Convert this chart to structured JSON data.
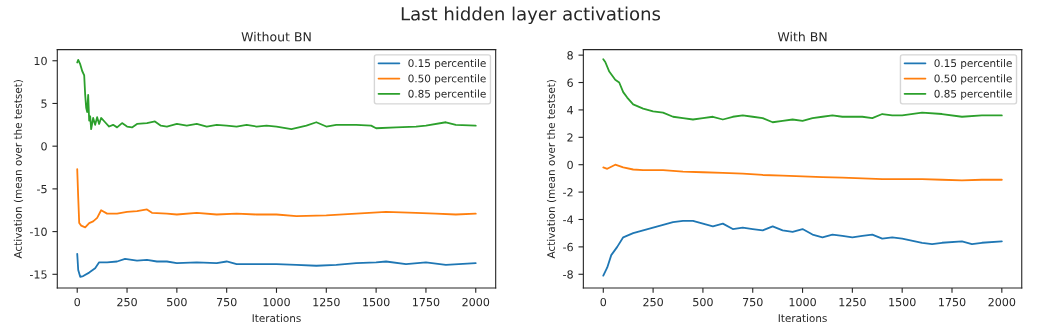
{
  "chart_data": [
    {
      "type": "line",
      "title": "Without BN",
      "xlabel": "Iterations",
      "ylabel": "Activation (mean over the testset)",
      "annotations": [
        "Last hidden layer activations"
      ],
      "xlim": [
        -100,
        2100
      ],
      "ylim": [
        -16.6,
        11.3
      ],
      "xticks": [
        0,
        250,
        500,
        750,
        1000,
        1250,
        1500,
        1750,
        2000
      ],
      "yticks": [
        -15,
        -10,
        -5,
        0,
        5,
        10
      ],
      "grid": false,
      "legend": "top right",
      "series": [
        {
          "name": "0.15 percentile",
          "color": "#1f77b4",
          "x": [
            0,
            5,
            15,
            30,
            60,
            90,
            110,
            150,
            200,
            240,
            300,
            350,
            400,
            450,
            500,
            600,
            700,
            750,
            800,
            900,
            1000,
            1100,
            1200,
            1300,
            1400,
            1500,
            1550,
            1650,
            1750,
            1850,
            2000
          ],
          "values": [
            -12.6,
            -14.5,
            -15.3,
            -15.2,
            -14.8,
            -14.3,
            -13.6,
            -13.6,
            -13.5,
            -13.2,
            -13.4,
            -13.3,
            -13.5,
            -13.5,
            -13.7,
            -13.6,
            -13.7,
            -13.5,
            -13.8,
            -13.8,
            -13.8,
            -13.9,
            -14.0,
            -13.9,
            -13.7,
            -13.6,
            -13.5,
            -13.8,
            -13.6,
            -13.9,
            -13.7
          ]
        },
        {
          "name": "0.50 percentile",
          "color": "#ff7f0e",
          "x": [
            0,
            5,
            10,
            20,
            40,
            60,
            80,
            100,
            120,
            150,
            200,
            250,
            300,
            350,
            375,
            450,
            500,
            600,
            700,
            800,
            900,
            1000,
            1100,
            1250,
            1400,
            1550,
            1700,
            1800,
            1900,
            2000
          ],
          "values": [
            -2.7,
            -6,
            -9,
            -9.3,
            -9.5,
            -9,
            -8.8,
            -8.4,
            -7.5,
            -7.9,
            -7.9,
            -7.7,
            -7.6,
            -7.4,
            -7.8,
            -7.9,
            -8.0,
            -7.8,
            -8.0,
            -7.9,
            -8.0,
            -8.0,
            -8.2,
            -8.1,
            -7.9,
            -7.7,
            -7.8,
            -7.9,
            -8.0,
            -7.9
          ]
        },
        {
          "name": "0.85 percentile",
          "color": "#2ca02c",
          "x": [
            0,
            5,
            15,
            25,
            35,
            40,
            45,
            50,
            55,
            60,
            65,
            70,
            80,
            90,
            100,
            110,
            120,
            140,
            160,
            180,
            200,
            225,
            250,
            275,
            300,
            350,
            390,
            420,
            450,
            500,
            550,
            600,
            650,
            700,
            750,
            800,
            850,
            900,
            950,
            1000,
            1075,
            1150,
            1200,
            1250,
            1300,
            1400,
            1475,
            1500,
            1600,
            1700,
            1750,
            1850,
            1900,
            2000
          ],
          "values": [
            9.8,
            10.1,
            9.6,
            8.8,
            8.3,
            6,
            4.5,
            4,
            6,
            3,
            3.5,
            2.0,
            3.3,
            2.5,
            3.4,
            2.6,
            3.3,
            2.8,
            2.3,
            2.5,
            2.2,
            2.7,
            2.3,
            2.2,
            2.6,
            2.7,
            2.9,
            2.4,
            2.3,
            2.6,
            2.4,
            2.6,
            2.3,
            2.5,
            2.4,
            2.3,
            2.5,
            2.3,
            2.4,
            2.3,
            2.0,
            2.4,
            2.8,
            2.3,
            2.5,
            2.5,
            2.4,
            2.1,
            2.2,
            2.3,
            2.4,
            2.8,
            2.5,
            2.4
          ]
        }
      ]
    },
    {
      "type": "line",
      "title": "With BN",
      "xlabel": "Iterations",
      "ylabel": "Activation (mean over the testset)",
      "xlim": [
        -100,
        2100
      ],
      "ylim": [
        -9,
        8.4
      ],
      "xticks": [
        0,
        250,
        500,
        750,
        1000,
        1250,
        1500,
        1750,
        2000
      ],
      "yticks": [
        -8,
        -6,
        -4,
        -2,
        0,
        2,
        4,
        6,
        8
      ],
      "grid": false,
      "legend": "top right",
      "series": [
        {
          "name": "0.15 percentile",
          "color": "#1f77b4",
          "x": [
            0,
            20,
            40,
            70,
            100,
            150,
            200,
            250,
            300,
            350,
            400,
            450,
            500,
            550,
            600,
            650,
            700,
            750,
            800,
            850,
            900,
            950,
            1000,
            1050,
            1100,
            1150,
            1200,
            1250,
            1300,
            1350,
            1400,
            1450,
            1500,
            1600,
            1650,
            1700,
            1800,
            1850,
            1900,
            2000
          ],
          "values": [
            -8.1,
            -7.5,
            -6.6,
            -6.0,
            -5.3,
            -5.0,
            -4.8,
            -4.6,
            -4.4,
            -4.2,
            -4.1,
            -4.1,
            -4.3,
            -4.5,
            -4.3,
            -4.7,
            -4.6,
            -4.7,
            -4.8,
            -4.5,
            -4.8,
            -4.9,
            -4.7,
            -5.1,
            -5.3,
            -5.1,
            -5.2,
            -5.3,
            -5.2,
            -5.1,
            -5.4,
            -5.3,
            -5.4,
            -5.7,
            -5.8,
            -5.7,
            -5.6,
            -5.8,
            -5.7,
            -5.6
          ]
        },
        {
          "name": "0.50 percentile",
          "color": "#ff7f0e",
          "x": [
            0,
            20,
            60,
            100,
            150,
            200,
            300,
            400,
            500,
            600,
            700,
            800,
            900,
            1000,
            1100,
            1200,
            1300,
            1400,
            1500,
            1600,
            1700,
            1800,
            1900,
            2000
          ],
          "values": [
            -0.2,
            -0.3,
            0.0,
            -0.2,
            -0.35,
            -0.4,
            -0.4,
            -0.5,
            -0.55,
            -0.6,
            -0.65,
            -0.75,
            -0.8,
            -0.85,
            -0.9,
            -0.95,
            -1.0,
            -1.05,
            -1.05,
            -1.05,
            -1.1,
            -1.15,
            -1.1,
            -1.1
          ]
        },
        {
          "name": "0.85 percentile",
          "color": "#2ca02c",
          "x": [
            0,
            10,
            30,
            60,
            80,
            100,
            120,
            150,
            200,
            250,
            300,
            350,
            400,
            450,
            500,
            550,
            600,
            650,
            700,
            750,
            800,
            850,
            900,
            950,
            1000,
            1050,
            1100,
            1150,
            1200,
            1300,
            1350,
            1400,
            1450,
            1500,
            1600,
            1700,
            1800,
            1900,
            2000
          ],
          "values": [
            7.7,
            7.5,
            6.8,
            6.2,
            6.0,
            5.3,
            4.9,
            4.4,
            4.1,
            3.9,
            3.8,
            3.5,
            3.4,
            3.3,
            3.4,
            3.5,
            3.3,
            3.5,
            3.6,
            3.5,
            3.4,
            3.1,
            3.2,
            3.3,
            3.2,
            3.4,
            3.5,
            3.6,
            3.5,
            3.5,
            3.4,
            3.7,
            3.6,
            3.6,
            3.8,
            3.7,
            3.5,
            3.6,
            3.6
          ]
        }
      ]
    }
  ]
}
